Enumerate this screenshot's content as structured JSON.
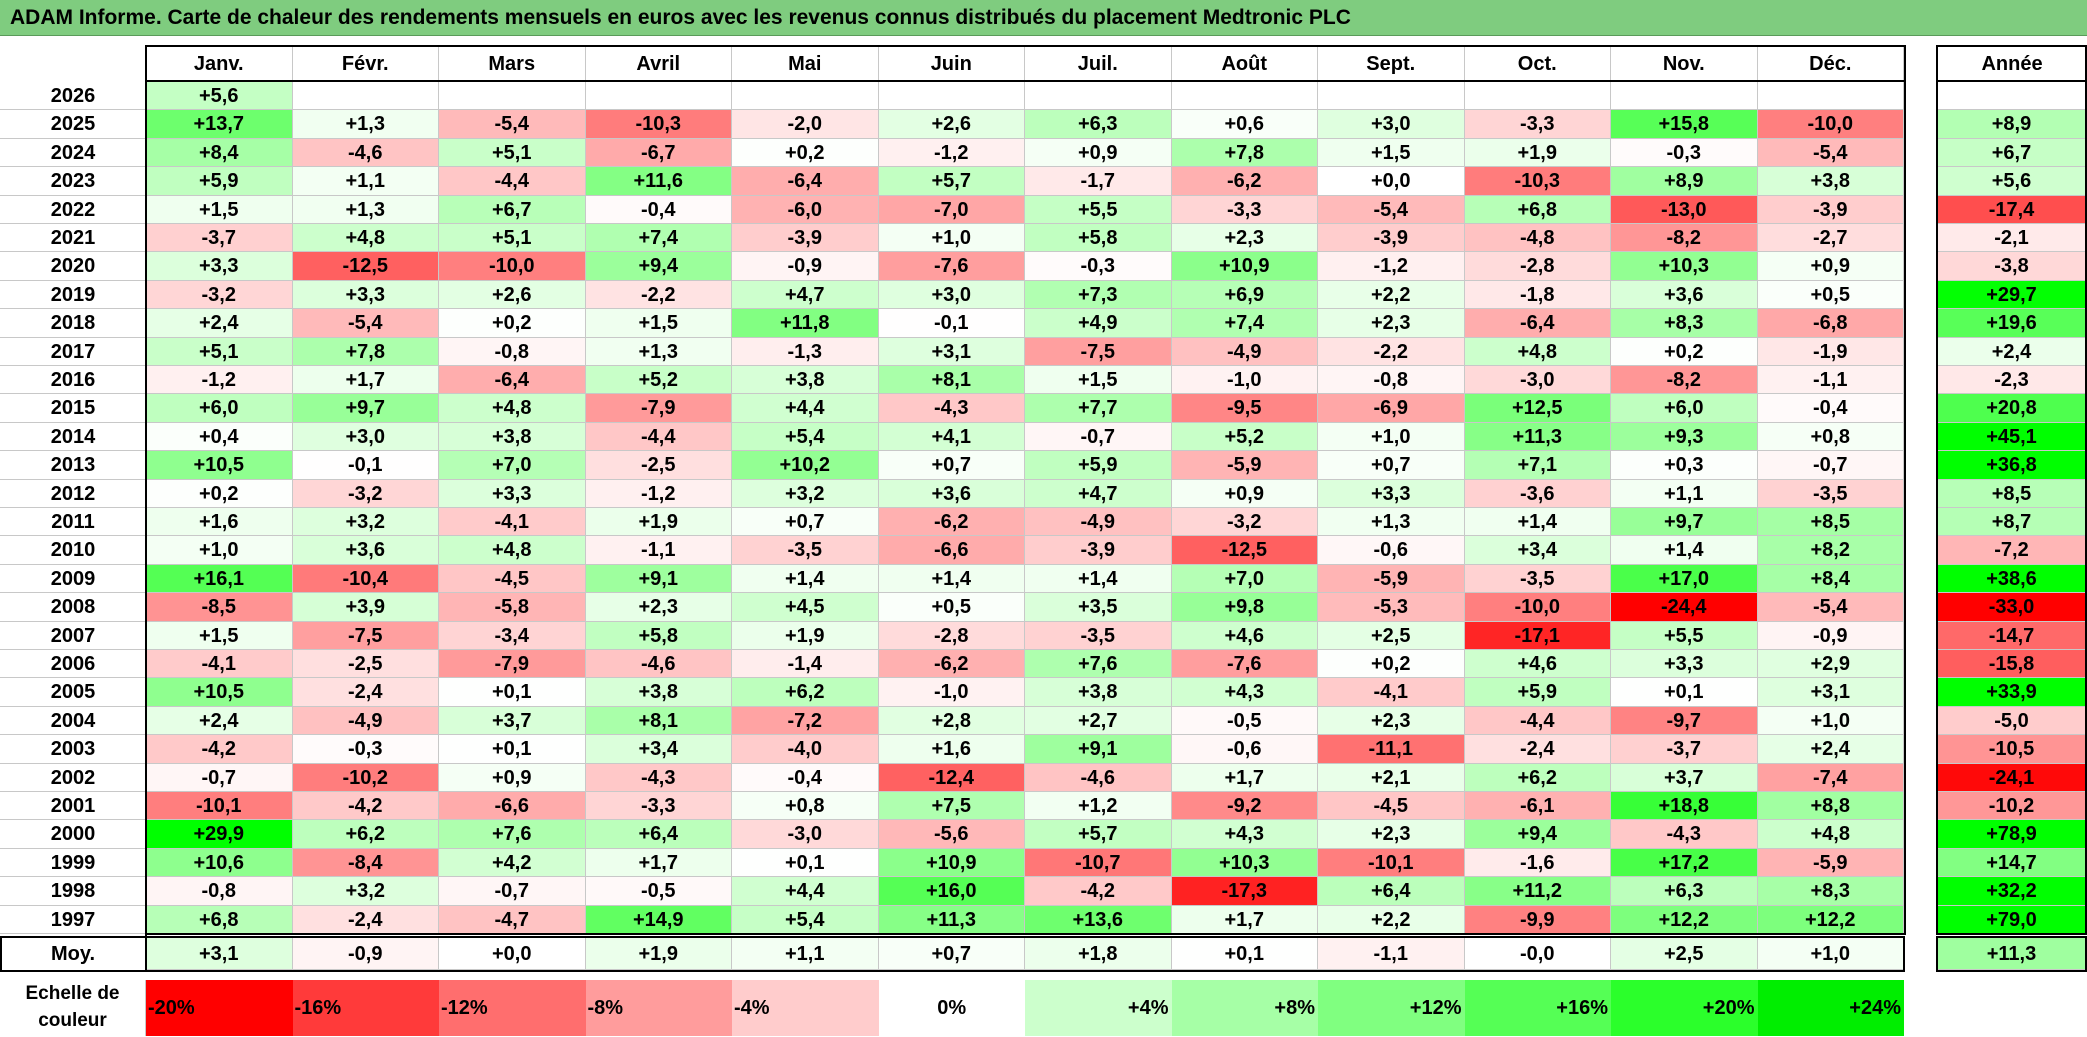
{
  "title": "ADAM Informe. Carte de chaleur des rendements mensuels en euros avec les revenus connus distribués du placement Medtronic PLC",
  "chart_data": {
    "type": "heatmap",
    "title": "ADAM Informe. Carte de chaleur des rendements mensuels en euros avec les revenus connus distribués du placement Medtronic PLC",
    "columns": [
      "Janv.",
      "Févr.",
      "Mars",
      "Avril",
      "Mai",
      "Juin",
      "Juil.",
      "Août",
      "Sept.",
      "Oct.",
      "Nov.",
      "Déc."
    ],
    "year_column_label": "Année",
    "rows": [
      {
        "year": "2026",
        "months": [
          "+5,6",
          "",
          "",
          "",
          "",
          "",
          "",
          "",
          "",
          "",
          "",
          ""
        ],
        "annual": ""
      },
      {
        "year": "2025",
        "months": [
          "+13,7",
          "+1,3",
          "-5,4",
          "-10,3",
          "-2,0",
          "+2,6",
          "+6,3",
          "+0,6",
          "+3,0",
          "-3,3",
          "+15,8",
          "-10,0"
        ],
        "annual": "+8,9"
      },
      {
        "year": "2024",
        "months": [
          "+8,4",
          "-4,6",
          "+5,1",
          "-6,7",
          "+0,2",
          "-1,2",
          "+0,9",
          "+7,8",
          "+1,5",
          "+1,9",
          "-0,3",
          "-5,4"
        ],
        "annual": "+6,7"
      },
      {
        "year": "2023",
        "months": [
          "+5,9",
          "+1,1",
          "-4,4",
          "+11,6",
          "-6,4",
          "+5,7",
          "-1,7",
          "-6,2",
          "+0,0",
          "-10,3",
          "+8,9",
          "+3,8"
        ],
        "annual": "+5,6"
      },
      {
        "year": "2022",
        "months": [
          "+1,5",
          "+1,3",
          "+6,7",
          "-0,4",
          "-6,0",
          "-7,0",
          "+5,5",
          "-3,3",
          "-5,4",
          "+6,8",
          "-13,0",
          "-3,9"
        ],
        "annual": "-17,4"
      },
      {
        "year": "2021",
        "months": [
          "-3,7",
          "+4,8",
          "+5,1",
          "+7,4",
          "-3,9",
          "+1,0",
          "+5,8",
          "+2,3",
          "-3,9",
          "-4,8",
          "-8,2",
          "-2,7"
        ],
        "annual": "-2,1"
      },
      {
        "year": "2020",
        "months": [
          "+3,3",
          "-12,5",
          "-10,0",
          "+9,4",
          "-0,9",
          "-7,6",
          "-0,3",
          "+10,9",
          "-1,2",
          "-2,8",
          "+10,3",
          "+0,9"
        ],
        "annual": "-3,8"
      },
      {
        "year": "2019",
        "months": [
          "-3,2",
          "+3,3",
          "+2,6",
          "-2,2",
          "+4,7",
          "+3,0",
          "+7,3",
          "+6,9",
          "+2,2",
          "-1,8",
          "+3,6",
          "+0,5"
        ],
        "annual": "+29,7"
      },
      {
        "year": "2018",
        "months": [
          "+2,4",
          "-5,4",
          "+0,2",
          "+1,5",
          "+11,8",
          "-0,1",
          "+4,9",
          "+7,4",
          "+2,3",
          "-6,4",
          "+8,3",
          "-6,8"
        ],
        "annual": "+19,6"
      },
      {
        "year": "2017",
        "months": [
          "+5,1",
          "+7,8",
          "-0,8",
          "+1,3",
          "-1,3",
          "+3,1",
          "-7,5",
          "-4,9",
          "-2,2",
          "+4,8",
          "+0,2",
          "-1,9"
        ],
        "annual": "+2,4"
      },
      {
        "year": "2016",
        "months": [
          "-1,2",
          "+1,7",
          "-6,4",
          "+5,2",
          "+3,8",
          "+8,1",
          "+1,5",
          "-1,0",
          "-0,8",
          "-3,0",
          "-8,2",
          "-1,1"
        ],
        "annual": "-2,3"
      },
      {
        "year": "2015",
        "months": [
          "+6,0",
          "+9,7",
          "+4,8",
          "-7,9",
          "+4,4",
          "-4,3",
          "+7,7",
          "-9,5",
          "-6,9",
          "+12,5",
          "+6,0",
          "-0,4"
        ],
        "annual": "+20,8"
      },
      {
        "year": "2014",
        "months": [
          "+0,4",
          "+3,0",
          "+3,8",
          "-4,4",
          "+5,4",
          "+4,1",
          "-0,7",
          "+5,2",
          "+1,0",
          "+11,3",
          "+9,3",
          "+0,8"
        ],
        "annual": "+45,1"
      },
      {
        "year": "2013",
        "months": [
          "+10,5",
          "-0,1",
          "+7,0",
          "-2,5",
          "+10,2",
          "+0,7",
          "+5,9",
          "-5,9",
          "+0,7",
          "+7,1",
          "+0,3",
          "-0,7"
        ],
        "annual": "+36,8"
      },
      {
        "year": "2012",
        "months": [
          "+0,2",
          "-3,2",
          "+3,3",
          "-1,2",
          "+3,2",
          "+3,6",
          "+4,7",
          "+0,9",
          "+3,3",
          "-3,6",
          "+1,1",
          "-3,5"
        ],
        "annual": "+8,5"
      },
      {
        "year": "2011",
        "months": [
          "+1,6",
          "+3,2",
          "-4,1",
          "+1,9",
          "+0,7",
          "-6,2",
          "-4,9",
          "-3,2",
          "+1,3",
          "+1,4",
          "+9,7",
          "+8,5"
        ],
        "annual": "+8,7"
      },
      {
        "year": "2010",
        "months": [
          "+1,0",
          "+3,6",
          "+4,8",
          "-1,1",
          "-3,5",
          "-6,6",
          "-3,9",
          "-12,5",
          "-0,6",
          "+3,4",
          "+1,4",
          "+8,2"
        ],
        "annual": "-7,2"
      },
      {
        "year": "2009",
        "months": [
          "+16,1",
          "-10,4",
          "-4,5",
          "+9,1",
          "+1,4",
          "+1,4",
          "+1,4",
          "+7,0",
          "-5,9",
          "-3,5",
          "+17,0",
          "+8,4"
        ],
        "annual": "+38,6"
      },
      {
        "year": "2008",
        "months": [
          "-8,5",
          "+3,9",
          "-5,8",
          "+2,3",
          "+4,5",
          "+0,5",
          "+3,5",
          "+9,8",
          "-5,3",
          "-10,0",
          "-24,4",
          "-5,4"
        ],
        "annual": "-33,0"
      },
      {
        "year": "2007",
        "months": [
          "+1,5",
          "-7,5",
          "-3,4",
          "+5,8",
          "+1,9",
          "-2,8",
          "-3,5",
          "+4,6",
          "+2,5",
          "-17,1",
          "+5,5",
          "-0,9"
        ],
        "annual": "-14,7"
      },
      {
        "year": "2006",
        "months": [
          "-4,1",
          "-2,5",
          "-7,9",
          "-4,6",
          "-1,4",
          "-6,2",
          "+7,6",
          "-7,6",
          "+0,2",
          "+4,6",
          "+3,3",
          "+2,9"
        ],
        "annual": "-15,8"
      },
      {
        "year": "2005",
        "months": [
          "+10,5",
          "-2,4",
          "+0,1",
          "+3,8",
          "+6,2",
          "-1,0",
          "+3,8",
          "+4,3",
          "-4,1",
          "+5,9",
          "+0,1",
          "+3,1"
        ],
        "annual": "+33,9"
      },
      {
        "year": "2004",
        "months": [
          "+2,4",
          "-4,9",
          "+3,7",
          "+8,1",
          "-7,2",
          "+2,8",
          "+2,7",
          "-0,5",
          "+2,3",
          "-4,4",
          "-9,7",
          "+1,0"
        ],
        "annual": "-5,0"
      },
      {
        "year": "2003",
        "months": [
          "-4,2",
          "-0,3",
          "+0,1",
          "+3,4",
          "-4,0",
          "+1,6",
          "+9,1",
          "-0,6",
          "-11,1",
          "-2,4",
          "-3,7",
          "+2,4"
        ],
        "annual": "-10,5"
      },
      {
        "year": "2002",
        "months": [
          "-0,7",
          "-10,2",
          "+0,9",
          "-4,3",
          "-0,4",
          "-12,4",
          "-4,6",
          "+1,7",
          "+2,1",
          "+6,2",
          "+3,7",
          "-7,4"
        ],
        "annual": "-24,1"
      },
      {
        "year": "2001",
        "months": [
          "-10,1",
          "-4,2",
          "-6,6",
          "-3,3",
          "+0,8",
          "+7,5",
          "+1,2",
          "-9,2",
          "-4,5",
          "-6,1",
          "+18,8",
          "+8,8"
        ],
        "annual": "-10,2"
      },
      {
        "year": "2000",
        "months": [
          "+29,9",
          "+6,2",
          "+7,6",
          "+6,4",
          "-3,0",
          "-5,6",
          "+5,7",
          "+4,3",
          "+2,3",
          "+9,4",
          "-4,3",
          "+4,8"
        ],
        "annual": "+78,9"
      },
      {
        "year": "1999",
        "months": [
          "+10,6",
          "-8,4",
          "+4,2",
          "+1,7",
          "+0,1",
          "+10,9",
          "-10,7",
          "+10,3",
          "-10,1",
          "-1,6",
          "+17,2",
          "-5,9"
        ],
        "annual": "+14,7"
      },
      {
        "year": "1998",
        "months": [
          "-0,8",
          "+3,2",
          "-0,7",
          "-0,5",
          "+4,4",
          "+16,0",
          "-4,2",
          "-17,3",
          "+6,4",
          "+11,2",
          "+6,3",
          "+8,3"
        ],
        "annual": "+32,2"
      },
      {
        "year": "1997",
        "months": [
          "+6,8",
          "-2,4",
          "-4,7",
          "+14,9",
          "+5,4",
          "+11,3",
          "+13,6",
          "+1,7",
          "+2,2",
          "-9,9",
          "+12,2",
          "+12,2"
        ],
        "annual": "+79,0"
      }
    ],
    "average": {
      "label": "Moy.",
      "months": [
        "+3,1",
        "-0,9",
        "+0,0",
        "+1,9",
        "+1,1",
        "+0,7",
        "+1,8",
        "+0,1",
        "-1,1",
        "-0,0",
        "+2,5",
        "+1,0"
      ],
      "annual": "+11,3"
    },
    "color_scale": {
      "label_line1": "Echelle de",
      "label_line2": "couleur",
      "stops": [
        {
          "label": "-20%",
          "value": -20,
          "color": "#ff0000"
        },
        {
          "label": "-16%",
          "value": -16,
          "color": "#ff3a3a"
        },
        {
          "label": "-12%",
          "value": -12,
          "color": "#ff6e6e"
        },
        {
          "label": "-8%",
          "value": -8,
          "color": "#ff9c9c"
        },
        {
          "label": "-4%",
          "value": -4,
          "color": "#ffcccc"
        },
        {
          "label": "0%",
          "value": 0,
          "color": "#ffffff"
        },
        {
          "label": "+4%",
          "value": 4,
          "color": "#ccffcc"
        },
        {
          "label": "+8%",
          "value": 8,
          "color": "#a6ffa6"
        },
        {
          "label": "+12%",
          "value": 12,
          "color": "#80ff80"
        },
        {
          "label": "+16%",
          "value": 16,
          "color": "#55ff55"
        },
        {
          "label": "+20%",
          "value": 20,
          "color": "#2bff2b"
        },
        {
          "label": "+24%",
          "value": 24,
          "color": "#00ee00"
        }
      ]
    }
  }
}
